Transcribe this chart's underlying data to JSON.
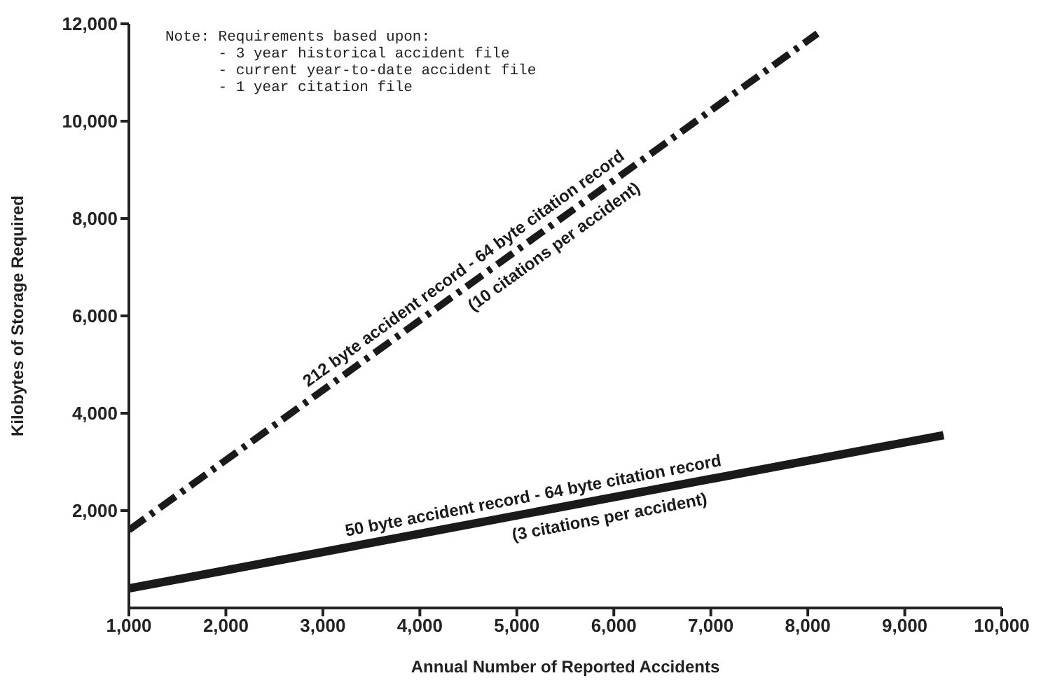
{
  "chart_data": {
    "type": "line",
    "xlabel": "Annual Number of Reported Accidents",
    "ylabel": "Kilobytes of Storage Required",
    "xlim": [
      1000,
      10000
    ],
    "xticks": [
      {
        "value": 1000,
        "label": "1,000"
      },
      {
        "value": 2000,
        "label": "2,000"
      },
      {
        "value": 3000,
        "label": "3,000"
      },
      {
        "value": 4000,
        "label": "4,000"
      },
      {
        "value": 5000,
        "label": "5,000"
      },
      {
        "value": 6000,
        "label": "6,000"
      },
      {
        "value": 7000,
        "label": "7,000"
      },
      {
        "value": 8000,
        "label": "8,000"
      },
      {
        "value": 9000,
        "label": "9,000"
      },
      {
        "value": 10000,
        "label": "10,000"
      }
    ],
    "ylim": [
      0,
      12000
    ],
    "yticks": [
      {
        "value": 2000,
        "label": "2,000"
      },
      {
        "value": 4000,
        "label": "4,000"
      },
      {
        "value": 6000,
        "label": "6,000"
      },
      {
        "value": 8000,
        "label": "8,000"
      },
      {
        "value": 10000,
        "label": "10,000"
      },
      {
        "value": 12000,
        "label": "12,000"
      }
    ],
    "marker": "none",
    "series": [
      {
        "name": "212 byte accident record - 64 byte citation record",
        "color": "#1a1a1a",
        "line_style": "dashed",
        "x": [
          1000,
          8100
        ],
        "values": [
          1600,
          11800
        ]
      },
      {
        "name": "50 byte accident record - 64 byte citation record",
        "color": "#1a1a1a",
        "line_style": "solid",
        "x": [
          1000,
          9400
        ],
        "values": [
          400,
          3550
        ]
      }
    ],
    "annotations": [
      "Note: Requirements based upon:\n      - 3 year historical accident file\n      - current year-to-date accident file\n      - 1 year citation file",
      "(10 citations per accident)",
      "(3 citations per accident)"
    ]
  }
}
